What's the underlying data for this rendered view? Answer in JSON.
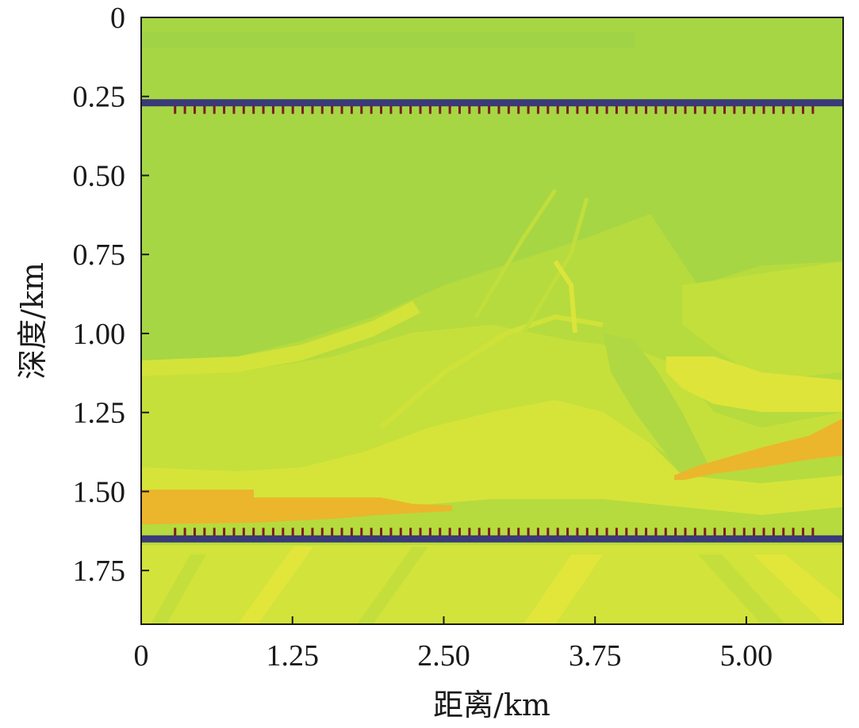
{
  "chart_data": {
    "type": "heatmap",
    "title": "",
    "xlabel": "距离/km",
    "ylabel": "深度/km",
    "xlim": [
      0,
      5.8
    ],
    "ylim": [
      1.92,
      0
    ],
    "x_ticks": [
      "0",
      "1.25",
      "2.50",
      "3.75",
      "5.00"
    ],
    "y_ticks": [
      "0",
      "0.25",
      "0.50",
      "0.75",
      "1.00",
      "1.25",
      "1.50",
      "1.75"
    ],
    "x_tick_values": [
      0,
      1.25,
      2.5,
      3.75,
      5.0
    ],
    "y_tick_values": [
      0,
      0.25,
      0.5,
      0.75,
      1.0,
      1.25,
      1.5,
      1.75
    ],
    "colors": {
      "background_field": "#b7dc3c",
      "light_green": "#a9d842",
      "yellow_green": "#c9e23a",
      "yellow": "#dde53a",
      "orange": "#ecb72b",
      "receiver_line": "#3a3a78",
      "receiver_tick": "#7a1f1f"
    },
    "receiver_lines": [
      {
        "depth_km": 0.27,
        "x_start_km": 0.0,
        "x_end_km": 5.8,
        "tick_side": "below",
        "tick_x_start_km": 0.28,
        "tick_x_end_km": 5.55
      },
      {
        "depth_km": 1.65,
        "x_start_km": 0.0,
        "x_end_km": 5.8,
        "tick_side": "above",
        "tick_x_start_km": 0.28,
        "tick_x_end_km": 5.55
      }
    ]
  }
}
